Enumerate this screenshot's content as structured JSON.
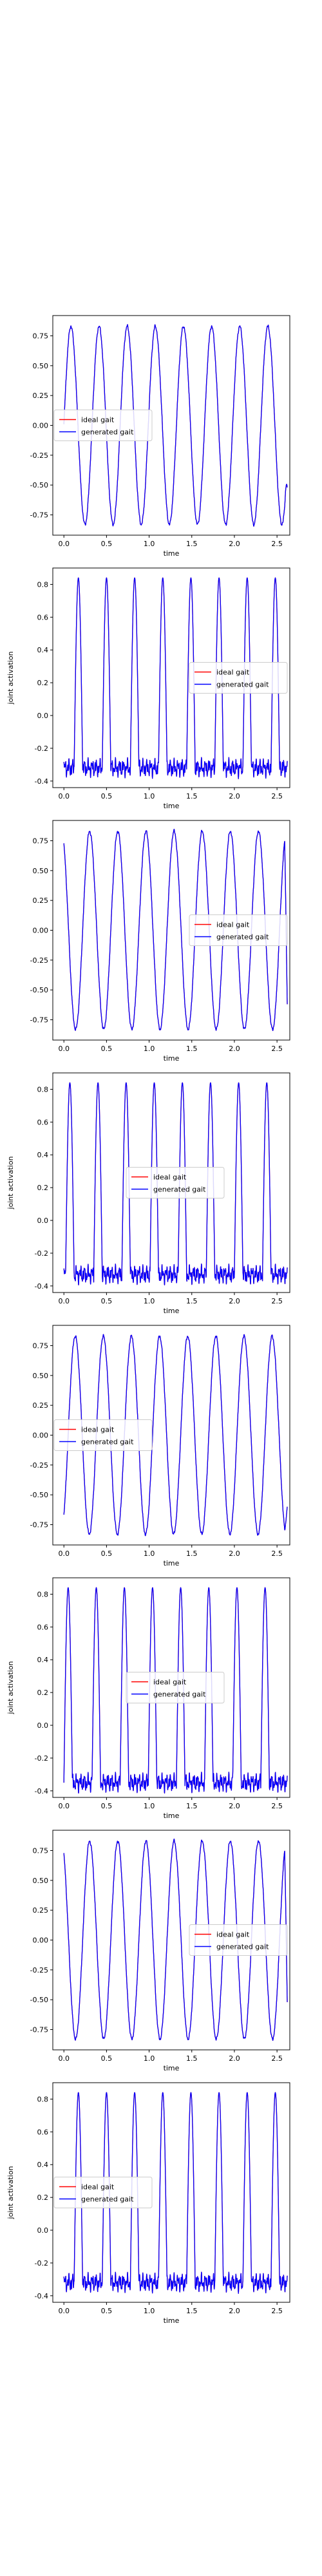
{
  "chart_data": [
    {
      "type": "line",
      "ylabel": "",
      "xlabel": "time",
      "xlim": [
        -0.13,
        2.65
      ],
      "ylim": [
        -0.92,
        0.92
      ],
      "xticks": [
        0.0,
        0.5,
        1.0,
        1.5,
        2.0,
        2.5
      ],
      "yticks": [
        0.75,
        0.5,
        0.25,
        0.0,
        -0.25,
        -0.5,
        -0.75
      ],
      "grid": false,
      "legend_position": "center-left",
      "waveform": {
        "kind": "sine",
        "amplitude": 0.83,
        "period": 0.33,
        "phase": 0.0,
        "end_value": -0.52
      },
      "series": [
        {
          "name": "ideal gait",
          "color": "#ff0000"
        },
        {
          "name": "generated gait",
          "color": "#0000ff"
        }
      ]
    },
    {
      "type": "line",
      "ylabel": "joint activation",
      "xlabel": "time",
      "xlim": [
        -0.13,
        2.65
      ],
      "ylim": [
        -0.44,
        0.9
      ],
      "xticks": [
        0.0,
        0.5,
        1.0,
        1.5,
        2.0,
        2.5
      ],
      "yticks": [
        0.8,
        0.6,
        0.4,
        0.2,
        0.0,
        -0.2,
        -0.4
      ],
      "grid": false,
      "legend_position": "center-right",
      "waveform": {
        "kind": "pulse",
        "peak": 0.84,
        "baseline": -0.32,
        "period": 0.33,
        "phase": 0.12,
        "width": 0.1
      },
      "series": [
        {
          "name": "ideal gait",
          "color": "#ff0000"
        },
        {
          "name": "generated gait",
          "color": "#0000ff"
        }
      ]
    },
    {
      "type": "line",
      "ylabel": "",
      "xlabel": "time",
      "xlim": [
        -0.13,
        2.65
      ],
      "ylim": [
        -0.92,
        0.92
      ],
      "xticks": [
        0.0,
        0.5,
        1.0,
        1.5,
        2.0,
        2.5
      ],
      "yticks": [
        0.75,
        0.5,
        0.25,
        0.0,
        -0.25,
        -0.5,
        -0.75
      ],
      "grid": false,
      "legend_position": "center-right",
      "waveform": {
        "kind": "sine",
        "amplitude": 0.83,
        "period": 0.33,
        "phase": 0.22,
        "end_value": -0.62
      },
      "series": [
        {
          "name": "ideal gait",
          "color": "#ff0000"
        },
        {
          "name": "generated gait",
          "color": "#0000ff"
        }
      ]
    },
    {
      "type": "line",
      "ylabel": "joint activation",
      "xlabel": "time",
      "xlim": [
        -0.13,
        2.65
      ],
      "ylim": [
        -0.44,
        0.9
      ],
      "xticks": [
        0.0,
        0.5,
        1.0,
        1.5,
        2.0,
        2.5
      ],
      "yticks": [
        0.8,
        0.6,
        0.4,
        0.2,
        0.0,
        -0.2,
        -0.4
      ],
      "grid": false,
      "legend_position": "center",
      "waveform": {
        "kind": "pulse",
        "peak": 0.84,
        "baseline": -0.33,
        "period": 0.33,
        "phase": 0.02,
        "width": 0.1
      },
      "series": [
        {
          "name": "ideal gait",
          "color": "#ff0000"
        },
        {
          "name": "generated gait",
          "color": "#0000ff"
        }
      ]
    },
    {
      "type": "line",
      "ylabel": "",
      "xlabel": "time",
      "xlim": [
        -0.13,
        2.65
      ],
      "ylim": [
        -0.92,
        0.92
      ],
      "xticks": [
        0.0,
        0.5,
        1.0,
        1.5,
        2.0,
        2.5
      ],
      "yticks": [
        0.75,
        0.5,
        0.25,
        0.0,
        -0.25,
        -0.5,
        -0.75
      ],
      "grid": false,
      "legend_position": "center-left",
      "waveform": {
        "kind": "sine",
        "amplitude": 0.83,
        "period": 0.33,
        "phase": 0.05,
        "end_value": -0.6
      },
      "series": [
        {
          "name": "ideal gait",
          "color": "#ff0000"
        },
        {
          "name": "generated gait",
          "color": "#0000ff"
        }
      ]
    },
    {
      "type": "line",
      "ylabel": "joint activation",
      "xlabel": "time",
      "xlim": [
        -0.13,
        2.65
      ],
      "ylim": [
        -0.44,
        0.9
      ],
      "xticks": [
        0.0,
        0.5,
        1.0,
        1.5,
        2.0,
        2.5
      ],
      "yticks": [
        0.8,
        0.6,
        0.4,
        0.2,
        0.0,
        -0.2,
        -0.4
      ],
      "grid": false,
      "legend_position": "center",
      "waveform": {
        "kind": "pulse",
        "peak": 0.84,
        "baseline": -0.35,
        "period": 0.33,
        "phase": 0.0,
        "width": 0.1
      },
      "series": [
        {
          "name": "ideal gait",
          "color": "#ff0000"
        },
        {
          "name": "generated gait",
          "color": "#0000ff"
        }
      ]
    },
    {
      "type": "line",
      "ylabel": "",
      "xlabel": "time",
      "xlim": [
        -0.13,
        2.65
      ],
      "ylim": [
        -0.92,
        0.92
      ],
      "xticks": [
        0.0,
        0.5,
        1.0,
        1.5,
        2.0,
        2.5
      ],
      "yticks": [
        0.75,
        0.5,
        0.25,
        0.0,
        -0.25,
        -0.5,
        -0.75
      ],
      "grid": false,
      "legend_position": "center-right",
      "waveform": {
        "kind": "sine",
        "amplitude": 0.83,
        "period": 0.33,
        "phase": 0.22,
        "end_value": -0.52
      },
      "series": [
        {
          "name": "ideal gait",
          "color": "#ff0000"
        },
        {
          "name": "generated gait",
          "color": "#0000ff"
        }
      ]
    },
    {
      "type": "line",
      "ylabel": "joint activation",
      "xlabel": "time",
      "xlim": [
        -0.13,
        2.65
      ],
      "ylim": [
        -0.44,
        0.9
      ],
      "xticks": [
        0.0,
        0.5,
        1.0,
        1.5,
        2.0,
        2.5
      ],
      "yticks": [
        0.8,
        0.6,
        0.4,
        0.2,
        0.0,
        -0.2,
        -0.4
      ],
      "grid": false,
      "legend_position": "center-left",
      "waveform": {
        "kind": "pulse",
        "peak": 0.84,
        "baseline": -0.32,
        "period": 0.33,
        "phase": 0.12,
        "width": 0.1
      },
      "series": [
        {
          "name": "ideal gait",
          "color": "#ff0000"
        },
        {
          "name": "generated gait",
          "color": "#0000ff"
        }
      ]
    }
  ]
}
